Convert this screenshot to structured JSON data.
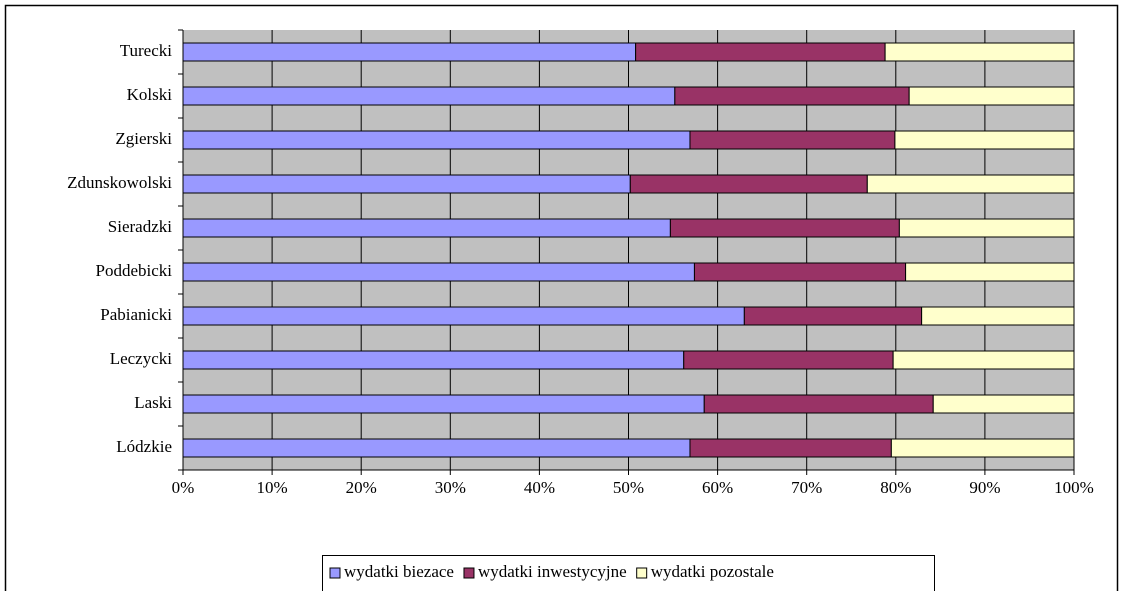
{
  "chart_data": {
    "type": "stacked_bar_horizontal",
    "categories": [
      "Turecki",
      "Kolski",
      "Zgierski",
      "Zdunskowolski",
      "Sieradzki",
      "Poddebicki",
      "Pabianicki",
      "Leczycki",
      "Laski",
      "Lódzkie"
    ],
    "series": [
      {
        "name": "wydatki biezace",
        "color": "#9999ff",
        "values": [
          50.8,
          55.2,
          56.9,
          50.2,
          54.7,
          57.4,
          63.0,
          56.2,
          58.5,
          56.9
        ]
      },
      {
        "name": "wydatki inwestycyjne",
        "color": "#993366",
        "values": [
          28.0,
          26.3,
          23.0,
          26.6,
          25.7,
          23.7,
          19.9,
          23.5,
          25.7,
          22.6
        ]
      },
      {
        "name": "wydatki pozostale",
        "color": "#ffffcc",
        "values": [
          21.2,
          18.5,
          20.1,
          23.2,
          19.6,
          18.9,
          17.1,
          20.3,
          15.8,
          20.5
        ]
      }
    ],
    "xlim": [
      0,
      100
    ],
    "xticks": [
      {
        "value": 0,
        "label": "0%"
      },
      {
        "value": 10,
        "label": "10%"
      },
      {
        "value": 20,
        "label": "20%"
      },
      {
        "value": 30,
        "label": "30%"
      },
      {
        "value": 40,
        "label": "40%"
      },
      {
        "value": 50,
        "label": "50%"
      },
      {
        "value": 60,
        "label": "60%"
      },
      {
        "value": 70,
        "label": "70%"
      },
      {
        "value": 80,
        "label": "80%"
      },
      {
        "value": 90,
        "label": "90%"
      },
      {
        "value": 100,
        "label": "100%"
      }
    ],
    "grid": true,
    "legend": "bottom"
  }
}
